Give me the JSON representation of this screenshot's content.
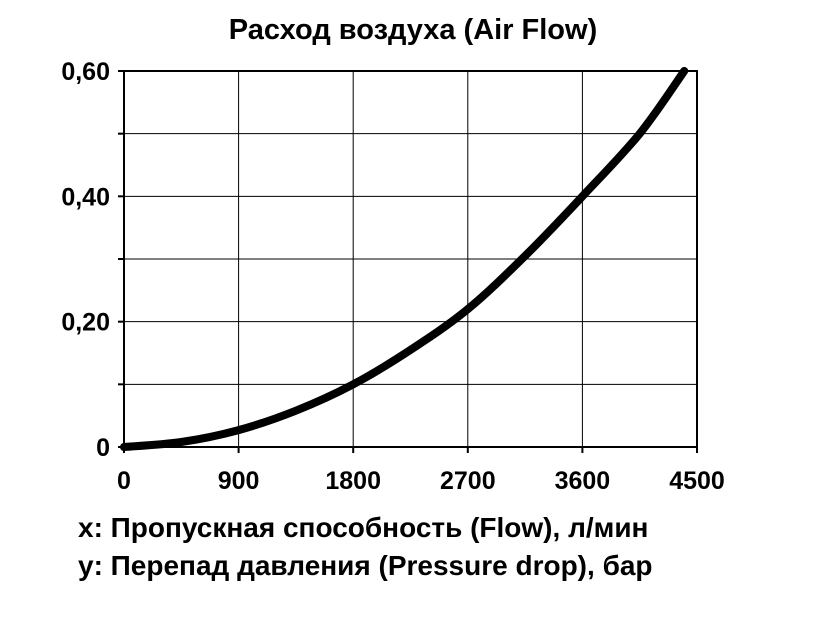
{
  "chart_data": {
    "type": "line",
    "title": "Расход воздуха (Air Flow)",
    "xlabel": "x: Пропускная способность (Flow), л/мин",
    "ylabel": "y: Перепад давления (Pressure drop), бар",
    "xlim": [
      0,
      4500
    ],
    "ylim": [
      0,
      0.6
    ],
    "x_ticks": [
      0,
      900,
      1800,
      2700,
      3600,
      4500
    ],
    "x_tick_labels": [
      "0",
      "900",
      "1800",
      "2700",
      "3600",
      "4500"
    ],
    "y_ticks": [
      0,
      0.2,
      0.4,
      0.6
    ],
    "y_tick_labels": [
      "0",
      "0,20",
      "0,40",
      "0,60"
    ],
    "y_gridlines": [
      0,
      0.1,
      0.2,
      0.3,
      0.4,
      0.5,
      0.6
    ],
    "grid": true,
    "series": [
      {
        "x": [
          0,
          450,
          900,
          1350,
          1800,
          2250,
          2700,
          3150,
          3600,
          4050,
          4400
        ],
        "y": [
          0,
          0.008,
          0.027,
          0.058,
          0.1,
          0.155,
          0.22,
          0.305,
          0.4,
          0.5,
          0.6
        ],
        "color": "#000000"
      }
    ],
    "legend": "none"
  }
}
